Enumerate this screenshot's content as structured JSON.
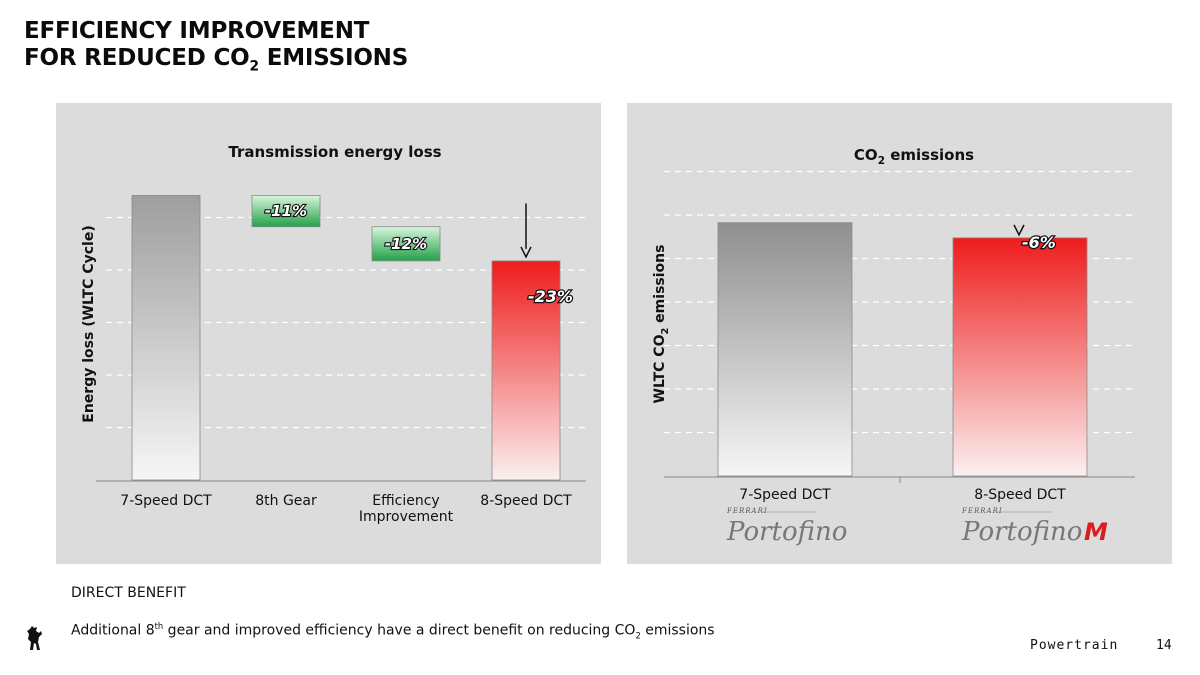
{
  "header": {
    "title_line1": "EFFICIENCY IMPROVEMENT",
    "title_line2_pre": "FOR REDUCED CO",
    "title_line2_sub": "2",
    "title_line2_post": " EMISSIONS"
  },
  "chart_data": [
    {
      "type": "bar",
      "subtype": "waterfall",
      "title": "Transmission energy loss",
      "ylabel": "Energy loss (WLTC Cycle)",
      "xlabel": "",
      "ylim": [
        0,
        110
      ],
      "grid": true,
      "categories": [
        "7-Speed DCT",
        "8th Gear",
        "Efficiency Improvement",
        "8-Speed DCT"
      ],
      "category_lines": [
        [
          "7-Speed DCT"
        ],
        [
          "8th Gear"
        ],
        [
          "Efficiency",
          "Improvement"
        ],
        [
          "8-Speed DCT"
        ]
      ],
      "bars": [
        {
          "category": "7-Speed DCT",
          "start": 0,
          "end": 100,
          "color": "grey",
          "label": ""
        },
        {
          "category": "8th Gear",
          "start": 89,
          "end": 100,
          "color": "green",
          "label": "-11%"
        },
        {
          "category": "Efficiency Improvement",
          "start": 77,
          "end": 89,
          "color": "green",
          "label": "-12%"
        },
        {
          "category": "8-Speed DCT",
          "start": 0,
          "end": 77,
          "color": "red",
          "label": ""
        }
      ],
      "total_change_label": "-23%",
      "colors": {
        "grey": "#9a9a9a",
        "green": "#2fa84f",
        "red": "#ee1c1c"
      }
    },
    {
      "type": "bar",
      "title_pre": "CO",
      "title_sub": "2",
      "title_post": " emissions",
      "ylabel_pre": "WLTC CO",
      "ylabel_sub": "2",
      "ylabel_post": " emissions",
      "ylim": [
        0,
        120
      ],
      "grid": true,
      "categories": [
        "7-Speed DCT",
        "8-Speed DCT"
      ],
      "values": [
        100,
        94
      ],
      "change_label": "-6%",
      "colors": {
        "bar1": "#8f8f8f",
        "bar2": "#ee1c1c"
      },
      "car_logos": [
        {
          "brand": "FERRARI",
          "model": "Portofino",
          "suffix": ""
        },
        {
          "brand": "FERRARI",
          "model": "Portofino",
          "suffix": "M"
        }
      ]
    }
  ],
  "footer": {
    "heading": "DIRECT BENEFIT",
    "text_part1": "Additional 8",
    "text_sup": "th",
    "text_part2": " gear and improved efficiency have a direct benefit on reducing CO",
    "text_sub": "2",
    "text_part3": " emissions",
    "section": "Powertrain",
    "page": "14",
    "logo_icon": "prancing-horse-icon"
  }
}
